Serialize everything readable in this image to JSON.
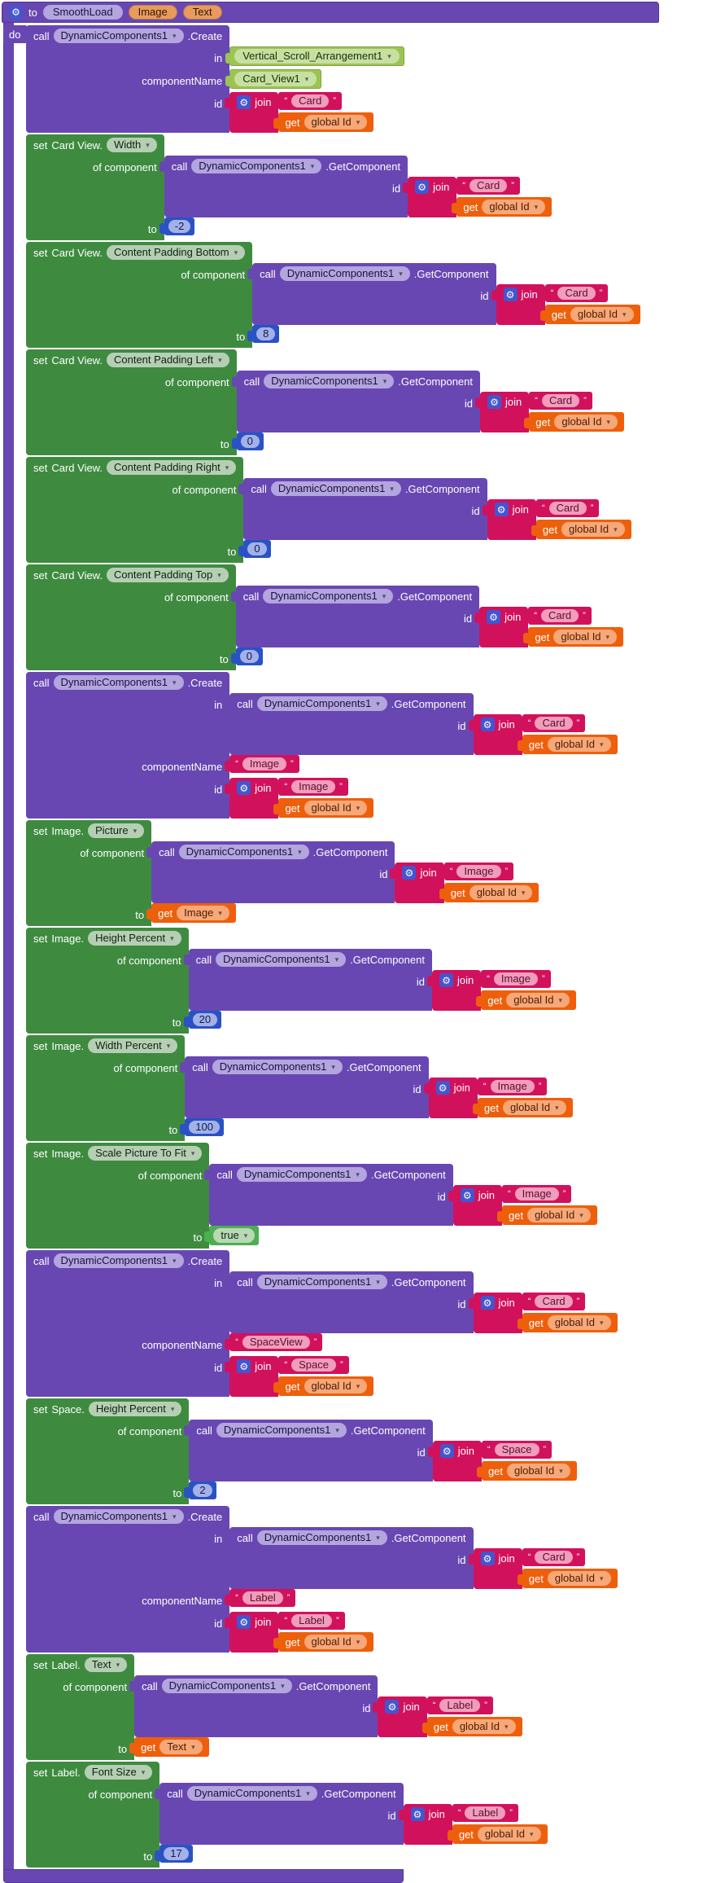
{
  "icons": {
    "gear_glyph": "⚙",
    "caret_glyph": "▾",
    "quote_open": "“",
    "quote_close": "”"
  },
  "labels": {
    "set": "set",
    "call": "call",
    "in": "in",
    "component_name_arg": "componentName",
    "id": "id",
    "of_component": "of component",
    "to": "to",
    "join": "join",
    "get": "get",
    "global_id": "global Id",
    "extension": "DynamicComponents1",
    "create_method": ".Create",
    "getcomponent_method": ".GetComponent"
  },
  "workspace": {
    "procedure": {
      "define_keyword": "to",
      "name": "SmoothLoad",
      "params": [
        "Image",
        "Text"
      ],
      "body_keyword": "do"
    },
    "blocks": [
      {
        "kind": "create",
        "in_component": "Vertical_Scroll_Arrangement1",
        "component_dropdown": "Card_View1",
        "id_join": "Card"
      },
      {
        "kind": "set",
        "target": "Card View.",
        "property": "Width",
        "component_join": "Card",
        "value_kind": "number",
        "value": "-2"
      },
      {
        "kind": "set",
        "target": "Card View.",
        "property": "Content Padding Bottom",
        "component_join": "Card",
        "value_kind": "number",
        "value": "8"
      },
      {
        "kind": "set",
        "target": "Card View.",
        "property": "Content Padding Left",
        "component_join": "Card",
        "value_kind": "number",
        "value": "0"
      },
      {
        "kind": "set",
        "target": "Card View.",
        "property": "Content Padding Right",
        "component_join": "Card",
        "value_kind": "number",
        "value": "0"
      },
      {
        "kind": "set",
        "target": "Card View.",
        "property": "Content Padding Top",
        "component_join": "Card",
        "value_kind": "number",
        "value": "0"
      },
      {
        "kind": "create",
        "in_join": "Card",
        "component_string": "Image",
        "id_join": "Image"
      },
      {
        "kind": "set",
        "target": "Image.",
        "property": "Picture",
        "component_join": "Image",
        "value_kind": "get",
        "value": "Image"
      },
      {
        "kind": "set",
        "target": "Image.",
        "property": "Height Percent",
        "component_join": "Image",
        "value_kind": "number",
        "value": "20"
      },
      {
        "kind": "set",
        "target": "Image.",
        "property": "Width Percent",
        "component_join": "Image",
        "value_kind": "number",
        "value": "100"
      },
      {
        "kind": "set",
        "target": "Image.",
        "property": "Scale Picture To Fit",
        "component_join": "Image",
        "value_kind": "logic",
        "value": "true"
      },
      {
        "kind": "create",
        "in_join": "Card",
        "component_string": "SpaceView",
        "id_join": "Space"
      },
      {
        "kind": "set",
        "target": "Space.",
        "property": "Height Percent",
        "component_join": "Space",
        "value_kind": "number",
        "value": "2"
      },
      {
        "kind": "create",
        "in_join": "Card",
        "component_string": "Label",
        "id_join": "Label"
      },
      {
        "kind": "set",
        "target": "Label.",
        "property": "Text",
        "component_join": "Label",
        "value_kind": "get",
        "value": "Text"
      },
      {
        "kind": "set",
        "target": "Label.",
        "property": "Font Size",
        "component_join": "Label",
        "value_kind": "number",
        "value": "17"
      }
    ]
  },
  "colors": {
    "procedure_purple": "#6847b3",
    "set_block_green": "#3e8b40",
    "text_join_pink": "#d2115c",
    "variable_get_orange": "#ee5f0c",
    "math_number_blue": "#2a52c5",
    "component_lime_green": "#9cc452",
    "logic_green": "#4caf50",
    "gear_badge_blue": "#4355cf",
    "workspace_background": "#ffffff"
  }
}
